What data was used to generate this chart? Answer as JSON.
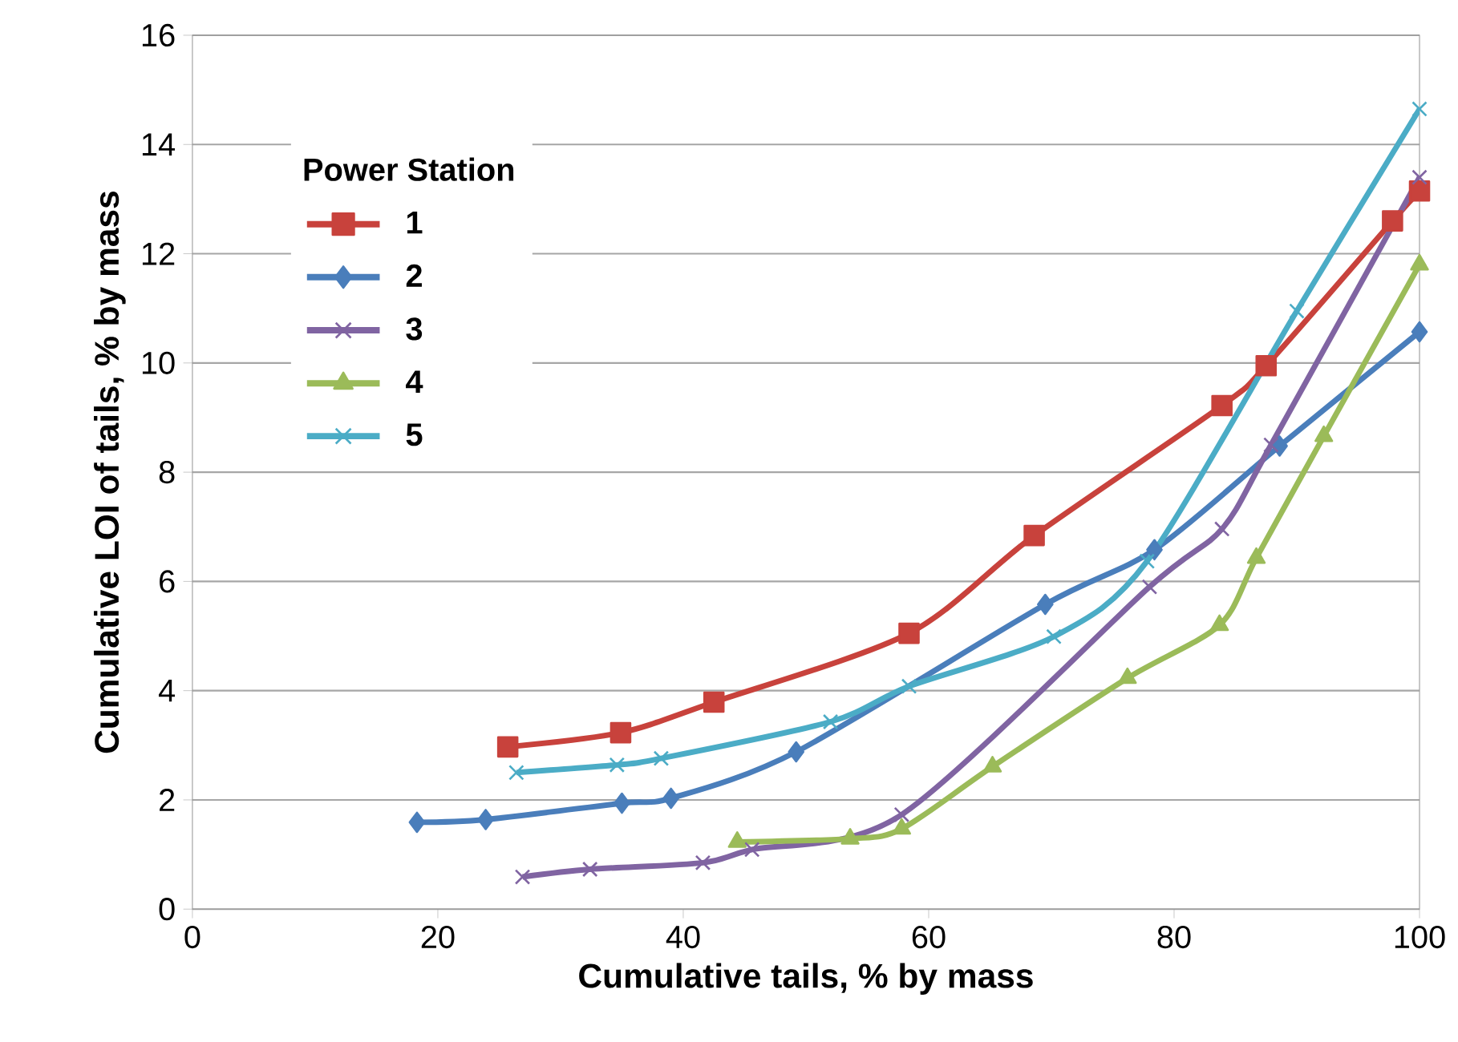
{
  "chart_data": {
    "type": "line",
    "xlabel": "Cumulative tails, % by mass",
    "ylabel": "Cumulative LOI of tails, % by mass",
    "legend_title": "Power Station",
    "xlim": [
      0,
      100
    ],
    "ylim": [
      0,
      16
    ],
    "xticks": [
      0,
      20,
      40,
      60,
      80,
      100
    ],
    "yticks": [
      0,
      2,
      4,
      6,
      8,
      10,
      12,
      14,
      16
    ],
    "grid": "y",
    "legend": "top left",
    "line_style": "solid",
    "series": [
      {
        "name": "1",
        "color": "#c8423c",
        "marker": "square",
        "x": [
          25.7,
          34.9,
          42.5,
          58.4,
          68.6,
          83.9,
          87.5,
          97.8,
          100
        ],
        "values": [
          2.97,
          3.23,
          3.79,
          5.05,
          6.84,
          9.22,
          9.95,
          12.6,
          13.15
        ]
      },
      {
        "name": "2",
        "color": "#4a7ebb",
        "marker": "diamond",
        "x": [
          18.3,
          23.9,
          35.0,
          39.0,
          49.2,
          69.5,
          78.4,
          88.6,
          100
        ],
        "values": [
          1.59,
          1.64,
          1.94,
          2.03,
          2.88,
          5.58,
          6.58,
          8.48,
          10.57
        ]
      },
      {
        "name": "3",
        "color": "#8064a2",
        "marker": "cross",
        "x": [
          26.9,
          32.4,
          41.6,
          45.6,
          57.8,
          78.0,
          83.9,
          87.9,
          100
        ],
        "values": [
          0.59,
          0.73,
          0.85,
          1.09,
          1.73,
          5.9,
          6.96,
          8.5,
          13.4
        ]
      },
      {
        "name": "4",
        "color": "#9bbb59",
        "marker": "triangle",
        "x": [
          44.4,
          53.6,
          57.8,
          65.2,
          76.2,
          83.7,
          86.7,
          92.2,
          100
        ],
        "values": [
          1.23,
          1.29,
          1.47,
          2.61,
          4.23,
          5.2,
          6.43,
          8.66,
          11.8
        ]
      },
      {
        "name": "5",
        "color": "#4bacc6",
        "marker": "cross",
        "x": [
          26.4,
          34.6,
          38.2,
          52.0,
          58.4,
          70.2,
          77.8,
          90.0,
          100
        ],
        "values": [
          2.5,
          2.64,
          2.76,
          3.43,
          4.08,
          4.99,
          6.37,
          10.95,
          14.65
        ]
      }
    ]
  }
}
